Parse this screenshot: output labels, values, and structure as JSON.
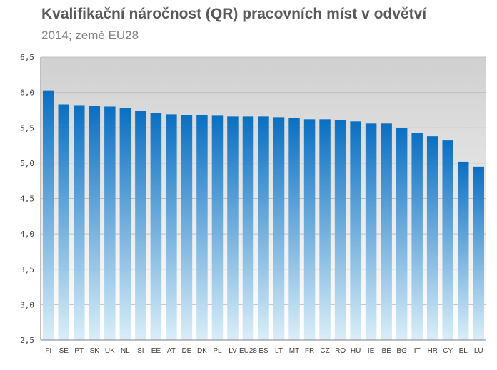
{
  "chart_data": {
    "type": "bar",
    "title": "Kvalifikační náročnost (QR)  pracovních míst v odvětví",
    "subtitle": "2014; země EU28",
    "xlabel": "",
    "ylabel": "",
    "ylim": [
      2.5,
      6.5
    ],
    "yticks": [
      "2,5",
      "3,0",
      "3,5",
      "4,0",
      "4,5",
      "5,0",
      "5,5",
      "6,0",
      "6,5"
    ],
    "categories": [
      "FI",
      "SE",
      "PT",
      "SK",
      "UK",
      "NL",
      "SI",
      "EE",
      "AT",
      "DE",
      "DK",
      "PL",
      "LV",
      "EU28",
      "ES",
      "LT",
      "MT",
      "FR",
      "CZ",
      "RO",
      "HU",
      "IE",
      "BE",
      "BG",
      "IT",
      "HR",
      "CY",
      "EL",
      "LU"
    ],
    "values": [
      6.03,
      5.83,
      5.82,
      5.81,
      5.8,
      5.78,
      5.74,
      5.71,
      5.69,
      5.68,
      5.68,
      5.67,
      5.66,
      5.66,
      5.66,
      5.65,
      5.64,
      5.62,
      5.62,
      5.61,
      5.59,
      5.56,
      5.56,
      5.5,
      5.43,
      5.38,
      5.32,
      5.02,
      4.95
    ],
    "grid": true,
    "legend": "none",
    "colors": {
      "bar_top": "#0a6fc2",
      "bar_bottom": "#daeef8",
      "plot_bg_top": "#d0d0d0",
      "plot_bg_bottom": "#ffffff",
      "grid": "#c0c0c0",
      "axis": "#7f7f7f"
    }
  }
}
